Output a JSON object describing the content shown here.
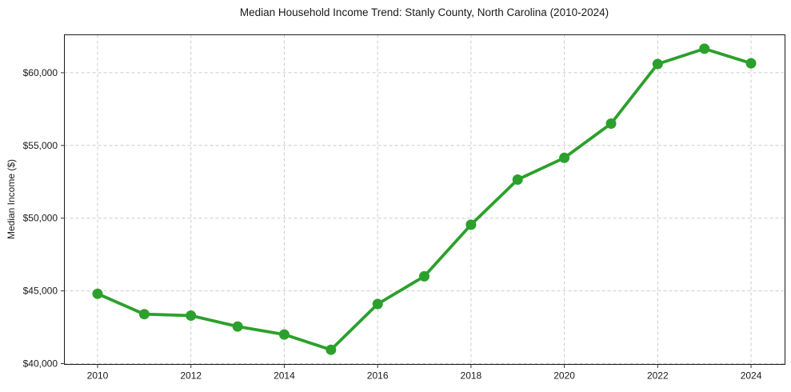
{
  "chart_data": {
    "type": "line",
    "title": "Median Household Income Trend: Stanly County, North Carolina (2010-2024)",
    "xlabel": "",
    "ylabel": "Median Income ($)",
    "x": [
      2010,
      2011,
      2012,
      2013,
      2014,
      2015,
      2016,
      2017,
      2018,
      2019,
      2020,
      2021,
      2022,
      2023,
      2024
    ],
    "values": [
      44800,
      43400,
      43300,
      42550,
      42000,
      40950,
      44100,
      46000,
      49550,
      52650,
      54150,
      56500,
      60600,
      61650,
      60650
    ],
    "x_ticks": [
      {
        "value": 2010,
        "label": "2010"
      },
      {
        "value": 2012,
        "label": "2012"
      },
      {
        "value": 2014,
        "label": "2014"
      },
      {
        "value": 2016,
        "label": "2016"
      },
      {
        "value": 2018,
        "label": "2018"
      },
      {
        "value": 2020,
        "label": "2020"
      },
      {
        "value": 2022,
        "label": "2022"
      },
      {
        "value": 2024,
        "label": "2024"
      }
    ],
    "y_ticks": [
      {
        "value": 40000,
        "label": "$40,000"
      },
      {
        "value": 45000,
        "label": "$45,000"
      },
      {
        "value": 50000,
        "label": "$50,000"
      },
      {
        "value": 55000,
        "label": "$55,000"
      },
      {
        "value": 60000,
        "label": "$60,000"
      }
    ],
    "xlim": [
      2009.28,
      2024.72
    ],
    "ylim": [
      40000,
      62650
    ],
    "grid": true,
    "grid_style": "dashed",
    "legend_position": "none",
    "line_color": "#2ca02c",
    "marker": "circle",
    "marker_color": "#2ca02c",
    "grid_color": "#cccccc",
    "axis_color": "#1a1a1a",
    "tick_color": "#333333",
    "text_color": "#1a1a1a",
    "background_color": "#ffffff"
  }
}
